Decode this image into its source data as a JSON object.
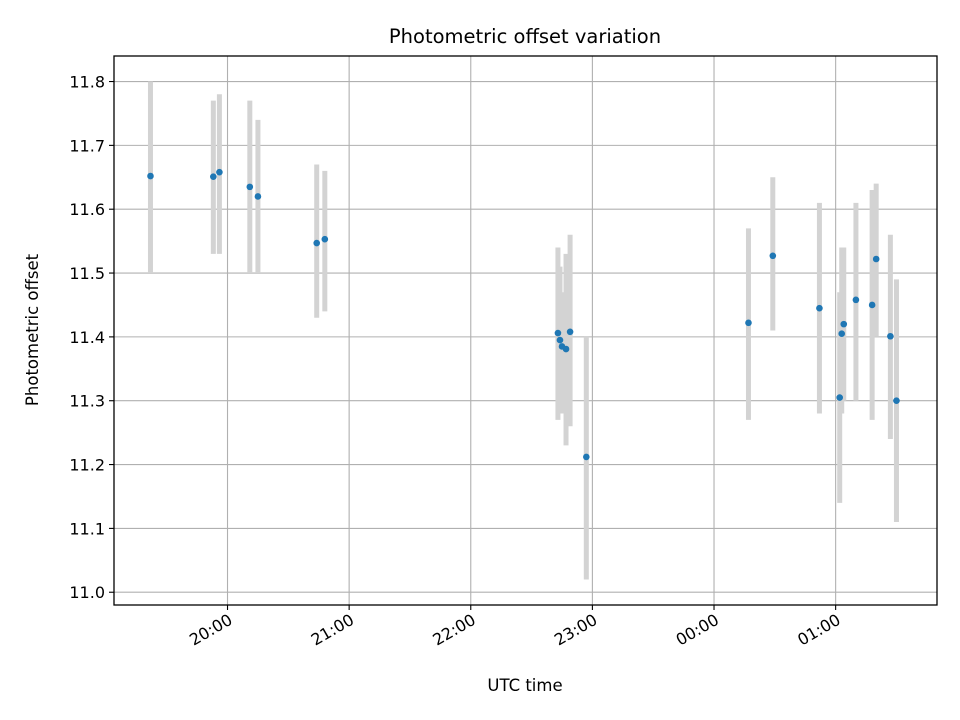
{
  "chart_data": {
    "type": "scatter",
    "title": "Photometric offset variation",
    "xlabel": "UTC time",
    "ylabel": "Photometric offset",
    "x_ticks": [
      "20:00",
      "21:00",
      "22:00",
      "23:00",
      "00:00",
      "01:00"
    ],
    "x_tick_offsets_min": [
      0,
      60,
      120,
      180,
      240,
      300
    ],
    "xlim_min": [
      -56,
      350
    ],
    "ylim": [
      10.98,
      11.84
    ],
    "y_ticks": [
      11.0,
      11.1,
      11.2,
      11.3,
      11.4,
      11.5,
      11.6,
      11.7,
      11.8
    ],
    "grid": true,
    "colors": {
      "point": "#1f77b4",
      "errorbar": "#d3d3d3",
      "grid": "#b0b0b0"
    },
    "points": [
      {
        "t": "19:22",
        "y": 11.652,
        "lo": 11.5,
        "hi": 11.8
      },
      {
        "t": "19:53",
        "y": 11.651,
        "lo": 11.53,
        "hi": 11.77
      },
      {
        "t": "19:56",
        "y": 11.658,
        "lo": 11.53,
        "hi": 11.78
      },
      {
        "t": "20:11",
        "y": 11.635,
        "lo": 11.5,
        "hi": 11.77
      },
      {
        "t": "20:15",
        "y": 11.62,
        "lo": 11.5,
        "hi": 11.74
      },
      {
        "t": "20:44",
        "y": 11.547,
        "lo": 11.43,
        "hi": 11.67
      },
      {
        "t": "20:48",
        "y": 11.553,
        "lo": 11.44,
        "hi": 11.66
      },
      {
        "t": "22:43",
        "y": 11.406,
        "lo": 11.27,
        "hi": 11.54
      },
      {
        "t": "22:44",
        "y": 11.395,
        "lo": 11.28,
        "hi": 11.51
      },
      {
        "t": "22:45",
        "y": 11.385,
        "lo": 11.28,
        "hi": 11.47
      },
      {
        "t": "22:47",
        "y": 11.381,
        "lo": 11.23,
        "hi": 11.53
      },
      {
        "t": "22:49",
        "y": 11.408,
        "lo": 11.26,
        "hi": 11.56
      },
      {
        "t": "22:57",
        "y": 11.212,
        "lo": 11.02,
        "hi": 11.4
      },
      {
        "t": "00:17",
        "y": 11.422,
        "lo": 11.27,
        "hi": 11.57
      },
      {
        "t": "00:29",
        "y": 11.527,
        "lo": 11.41,
        "hi": 11.65
      },
      {
        "t": "00:52",
        "y": 11.445,
        "lo": 11.28,
        "hi": 11.61
      },
      {
        "t": "01:02",
        "y": 11.305,
        "lo": 11.14,
        "hi": 11.47
      },
      {
        "t": "01:03",
        "y": 11.405,
        "lo": 11.28,
        "hi": 11.54
      },
      {
        "t": "01:04",
        "y": 11.42,
        "lo": 11.3,
        "hi": 11.54
      },
      {
        "t": "01:10",
        "y": 11.458,
        "lo": 11.3,
        "hi": 11.61
      },
      {
        "t": "01:18",
        "y": 11.45,
        "lo": 11.27,
        "hi": 11.63
      },
      {
        "t": "01:20",
        "y": 11.522,
        "lo": 11.4,
        "hi": 11.64
      },
      {
        "t": "01:27",
        "y": 11.401,
        "lo": 11.24,
        "hi": 11.56
      },
      {
        "t": "01:30",
        "y": 11.3,
        "lo": 11.11,
        "hi": 11.49
      }
    ]
  }
}
